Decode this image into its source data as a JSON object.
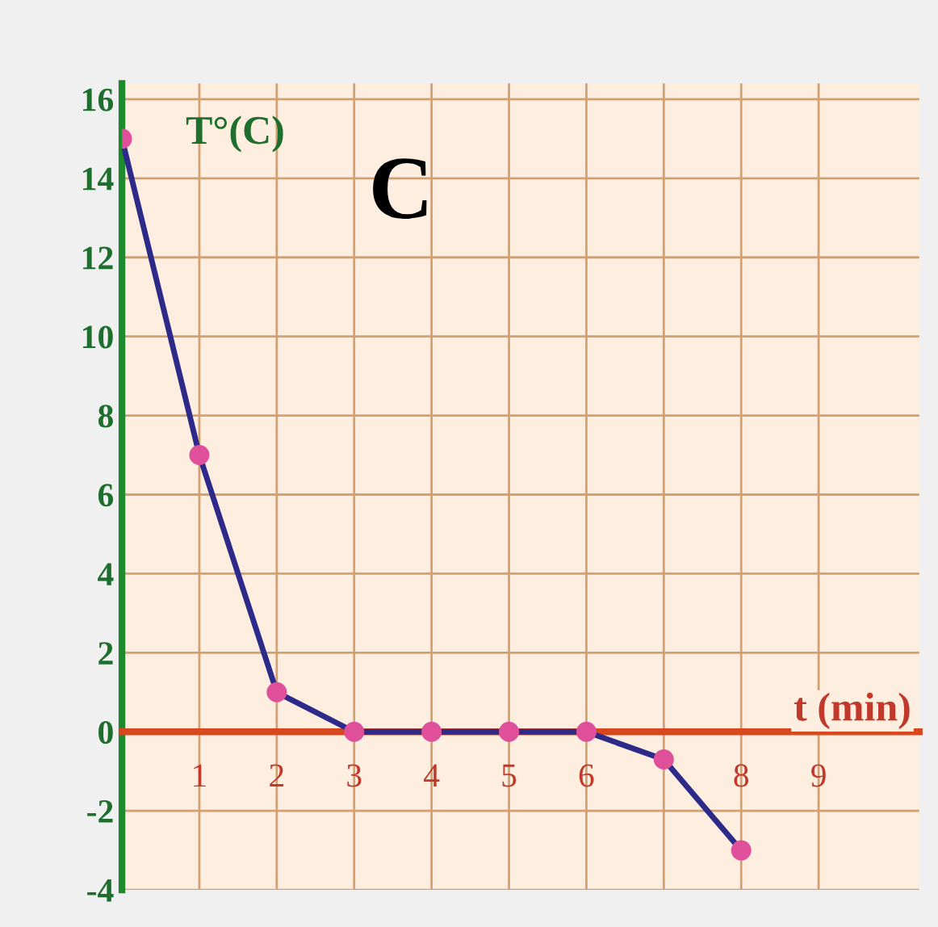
{
  "chart_data": {
    "type": "line",
    "title": "C",
    "xlabel": "t (min)",
    "ylabel": "T°(C)",
    "x": [
      0,
      1,
      2,
      3,
      4,
      5,
      6,
      7,
      8
    ],
    "series": [
      {
        "color": "#2e2a8a",
        "values": [
          15,
          7,
          1,
          0,
          0,
          0,
          0,
          -0.7,
          -3
        ]
      }
    ],
    "marker": "circle",
    "line_style": "solid",
    "xlim": [
      0,
      10.3
    ],
    "ylim": [
      -4,
      16.4
    ],
    "xticks": [
      1,
      2,
      3,
      4,
      5,
      6,
      {
        "value": 7,
        "label": null
      },
      8,
      9
    ],
    "yticks": [
      -4,
      -2,
      0,
      2,
      4,
      6,
      8,
      10,
      12,
      14,
      16
    ],
    "grid": true
  }
}
